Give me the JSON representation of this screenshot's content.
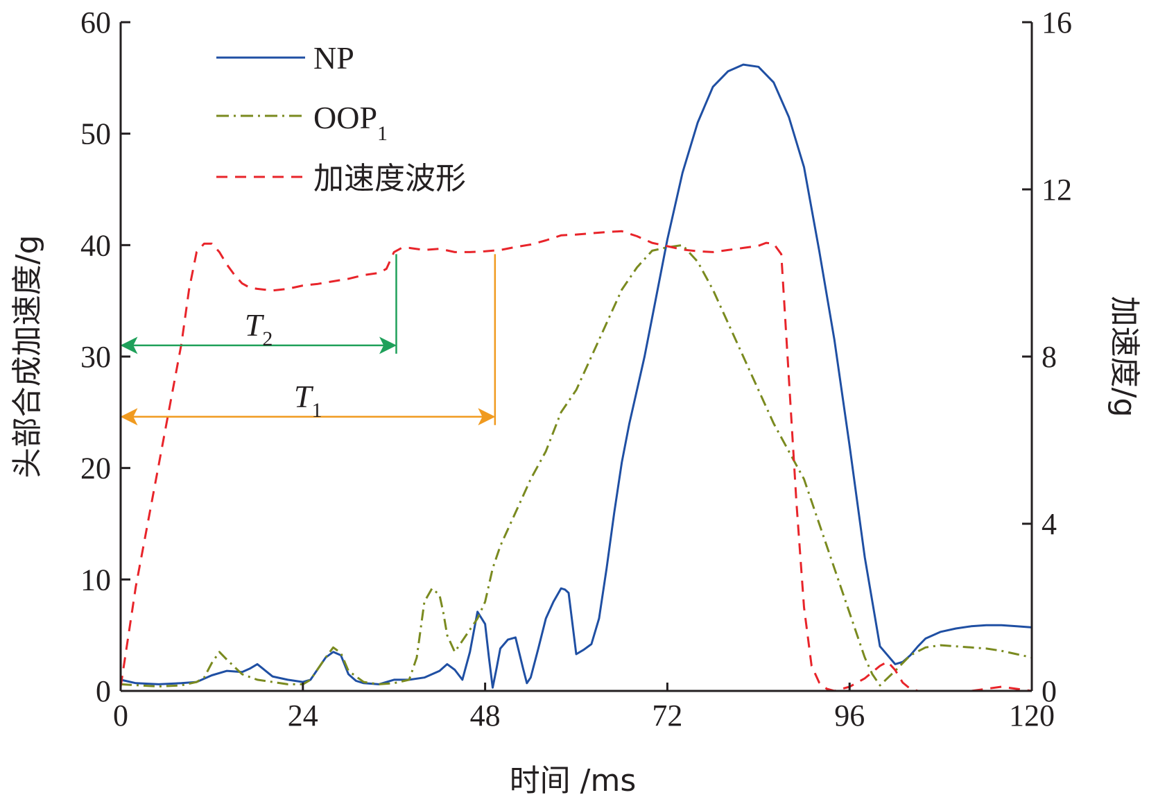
{
  "chart_data": {
    "type": "line",
    "xlabel": "时间 /ms",
    "ylabel_left": "头部合成加速度/g",
    "ylabel_right": "加速度/g",
    "xlim": [
      0,
      120
    ],
    "ylim_left": [
      0,
      60
    ],
    "ylim_right": [
      0,
      16
    ],
    "x_ticks": [
      0,
      24,
      48,
      72,
      96,
      120
    ],
    "y_ticks_left": [
      0,
      10,
      20,
      30,
      40,
      50,
      60
    ],
    "y_ticks_right": [
      0,
      4,
      8,
      12,
      16
    ],
    "grid": false,
    "legend_position": "top-left",
    "series": [
      {
        "name": "NP",
        "axis": "left",
        "color": "#1f4fa3",
        "style": "solid",
        "x": [
          0,
          2,
          5,
          8,
          10,
          12,
          14,
          16,
          17,
          18,
          20,
          22,
          24,
          25,
          26,
          27,
          28,
          29,
          30,
          31,
          32,
          34,
          36,
          38,
          40,
          42,
          43,
          44,
          45,
          46,
          47,
          48,
          48.5,
          49,
          49.5,
          50,
          51,
          52,
          53,
          53.5,
          54,
          55,
          56,
          57,
          58,
          58.5,
          59,
          60,
          61,
          62,
          63,
          64,
          65,
          66,
          67,
          68,
          69,
          70,
          72,
          74,
          76,
          78,
          80,
          82,
          84,
          86,
          88,
          90,
          92,
          94,
          96,
          98,
          100,
          102,
          103,
          104,
          105,
          106,
          108,
          110,
          112,
          114,
          116,
          118,
          120
        ],
        "y": [
          1.0,
          0.7,
          0.6,
          0.7,
          0.8,
          1.4,
          1.8,
          1.7,
          2.0,
          2.4,
          1.3,
          1.0,
          0.8,
          1.0,
          2.0,
          3.0,
          3.5,
          3.2,
          1.5,
          0.9,
          0.7,
          0.6,
          1.0,
          1.0,
          1.2,
          1.8,
          2.4,
          1.9,
          1.0,
          3.5,
          7.1,
          6.0,
          3.0,
          0.3,
          2.0,
          3.8,
          4.6,
          4.8,
          2.0,
          0.7,
          1.2,
          3.8,
          6.5,
          8.0,
          9.2,
          9.1,
          8.8,
          3.3,
          3.7,
          4.2,
          6.5,
          11.0,
          16.0,
          20.5,
          24.0,
          27.0,
          30.0,
          33.5,
          40.5,
          46.5,
          51.0,
          54.2,
          55.6,
          56.2,
          56.0,
          54.6,
          51.5,
          47.0,
          39.5,
          31.5,
          22.0,
          12.0,
          4.0,
          2.4,
          2.6,
          3.2,
          4.0,
          4.7,
          5.3,
          5.6,
          5.8,
          5.9,
          5.9,
          5.8,
          5.7
        ]
      },
      {
        "name": "OOP1",
        "axis": "left",
        "color": "#7a8a1f",
        "style": "dashdot",
        "x": [
          0,
          5,
          8,
          10,
          11,
          12,
          13,
          14,
          16,
          18,
          20,
          22,
          24,
          25,
          26,
          27,
          28,
          29,
          30,
          32,
          34,
          36,
          38,
          39,
          40,
          41,
          42,
          42.5,
          43,
          44,
          45,
          46,
          47,
          48,
          49,
          50,
          52,
          54,
          56,
          58,
          60,
          62,
          64,
          66,
          68,
          70,
          72,
          74,
          76,
          78,
          80,
          82,
          84,
          86,
          88,
          90,
          92,
          94,
          96,
          98,
          99,
          100,
          102,
          104,
          106,
          108,
          110,
          112,
          114,
          116,
          118,
          120
        ],
        "y": [
          0.6,
          0.4,
          0.5,
          0.8,
          1.2,
          2.5,
          3.5,
          2.8,
          1.5,
          1.0,
          0.8,
          0.6,
          0.6,
          1.0,
          2.0,
          3.0,
          3.9,
          3.4,
          1.8,
          0.8,
          0.6,
          0.7,
          1.0,
          3.0,
          8.0,
          9.2,
          8.6,
          7.0,
          5.0,
          3.5,
          4.5,
          5.5,
          6.5,
          8.0,
          11.0,
          13.0,
          16.0,
          19.0,
          21.5,
          25.0,
          27.0,
          30.0,
          33.0,
          36.0,
          38.0,
          39.5,
          39.8,
          40.0,
          38.5,
          36.0,
          33.0,
          30.0,
          27.0,
          24.0,
          21.5,
          19.0,
          15.0,
          11.0,
          7.0,
          3.0,
          1.5,
          0.5,
          1.8,
          3.2,
          3.9,
          4.1,
          4.0,
          3.9,
          3.8,
          3.6,
          3.3,
          3.0
        ]
      },
      {
        "name": "加速度波形",
        "axis": "right",
        "color": "#e8242a",
        "style": "dashed",
        "x": [
          0,
          2,
          5,
          8,
          9,
          10,
          11,
          12,
          13,
          14,
          15,
          16,
          17,
          18,
          20,
          22,
          24,
          26,
          28,
          30,
          32,
          34,
          35,
          36,
          37,
          38,
          40,
          42,
          44,
          46,
          48,
          50,
          52,
          54,
          56,
          58,
          60,
          62,
          64,
          66,
          68,
          70,
          72,
          74,
          76,
          78,
          80,
          82,
          84,
          85,
          86,
          87,
          88,
          89,
          90,
          91,
          92,
          93,
          94,
          95,
          96,
          98,
          100,
          101,
          102,
          103,
          104,
          105,
          106,
          108,
          110,
          112,
          114,
          116,
          118,
          120
        ],
        "y": [
          0.1,
          2.5,
          5.4,
          8.3,
          9.6,
          10.5,
          10.7,
          10.7,
          10.5,
          10.2,
          9.95,
          9.75,
          9.65,
          9.62,
          9.58,
          9.62,
          9.7,
          9.74,
          9.8,
          9.86,
          9.95,
          10.0,
          10.1,
          10.5,
          10.6,
          10.6,
          10.55,
          10.58,
          10.5,
          10.5,
          10.52,
          10.55,
          10.62,
          10.68,
          10.78,
          10.9,
          10.92,
          10.95,
          10.98,
          11.0,
          10.88,
          10.72,
          10.64,
          10.56,
          10.52,
          10.5,
          10.55,
          10.6,
          10.65,
          10.72,
          10.7,
          10.45,
          7.5,
          4.5,
          2.0,
          0.6,
          0.2,
          0.05,
          0.0,
          0.05,
          0.1,
          0.3,
          0.6,
          0.7,
          0.5,
          0.2,
          0.05,
          0.0,
          0.0,
          0.0,
          0.0,
          0.0,
          0.05,
          0.1,
          0.05,
          0.0
        ]
      }
    ],
    "annotations": [
      {
        "label": "T",
        "subscript": "2",
        "x_start": 0,
        "x_end": 36.3,
        "y": 31,
        "color": "#1fa05a"
      },
      {
        "label": "T",
        "subscript": "1",
        "x_start": 0,
        "x_end": 49.3,
        "y": 24.6,
        "color": "#f09a1f"
      }
    ]
  }
}
